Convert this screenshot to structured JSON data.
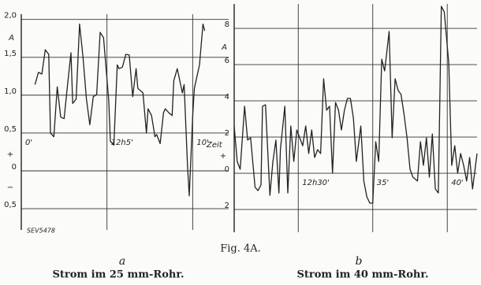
{
  "figure": {
    "caption": "Fig. 4A.",
    "source_mark": "SEV5478"
  },
  "chart_data": [
    {
      "type": "line",
      "panel_label": "a",
      "caption": "Strom im 25 mm-Rohr.",
      "ylabel": "A",
      "xlabel": "Zeit",
      "sign_labels": [
        "+",
        "−"
      ],
      "color": "#222222",
      "grid": true,
      "xlim": [
        0,
        12.1
      ],
      "xticks": [
        {
          "value": 0,
          "label": "0'"
        },
        {
          "value": 5,
          "label": "12h5'"
        },
        {
          "value": 10,
          "label": "10'"
        }
      ],
      "ylim": [
        -0.78,
        2.07
      ],
      "yticks": [
        {
          "value": 2,
          "label": "2,0"
        },
        {
          "value": 1.5,
          "label": "1,5"
        },
        {
          "value": 1,
          "label": "1,0"
        },
        {
          "value": 0.5,
          "label": "0,5"
        },
        0,
        {
          "value": -0.5,
          "label": "0,5"
        }
      ],
      "x": [
        0.8,
        1.0,
        1.2,
        1.4,
        1.6,
        1.7,
        1.9,
        2.1,
        2.3,
        2.5,
        2.7,
        2.9,
        3.0,
        3.2,
        3.4,
        3.6,
        3.8,
        4.0,
        4.2,
        4.4,
        4.6,
        4.8,
        5.1,
        5.2,
        5.4,
        5.6,
        5.7,
        5.9,
        6.1,
        6.3,
        6.5,
        6.7,
        6.8,
        7.1,
        7.3,
        7.4,
        7.6,
        7.8,
        7.9,
        8.1,
        8.3,
        8.4,
        8.6,
        8.8,
        8.9,
        9.1,
        9.4,
        9.5,
        9.7,
        9.8,
        10.0,
        10.1,
        10.4,
        10.6,
        10.7
      ],
      "values": [
        1.14,
        1.3,
        1.28,
        1.6,
        1.54,
        0.5,
        0.45,
        1.11,
        0.71,
        0.69,
        1.14,
        1.56,
        0.89,
        0.95,
        1.94,
        1.51,
        0.95,
        0.61,
        0.98,
        1.01,
        1.83,
        1.76,
        0.93,
        0.39,
        0.34,
        1.4,
        1.35,
        1.37,
        1.54,
        1.53,
        0.98,
        1.35,
        1.09,
        1.03,
        0.5,
        0.82,
        0.73,
        0.45,
        0.48,
        0.36,
        0.77,
        0.82,
        0.77,
        0.73,
        1.19,
        1.35,
        1.03,
        1.14,
        0.07,
        -0.33,
        0.73,
        1.09,
        1.4,
        1.94,
        1.85
      ]
    },
    {
      "type": "line",
      "panel_label": "b",
      "caption": "Strom im 40 mm-Rohr.",
      "ylabel": "A",
      "sign_labels": [
        "+"
      ],
      "color": "#222222",
      "grid": true,
      "xlim": [
        25.7,
        42.0
      ],
      "xticks": [
        {
          "value": 30,
          "label": "12h30'"
        },
        {
          "value": 35,
          "label": "35'"
        },
        {
          "value": 40,
          "label": "40'"
        }
      ],
      "ylim": [
        -3.26,
        9.35
      ],
      "yticks": [
        8,
        6,
        4,
        2,
        0,
        {
          "value": -2,
          "label": "2"
        }
      ],
      "x": [
        25.7,
        25.9,
        26.1,
        26.4,
        26.6,
        26.8,
        27.1,
        27.3,
        27.5,
        27.6,
        27.8,
        28.1,
        28.3,
        28.5,
        28.7,
        28.8,
        29.1,
        29.3,
        29.5,
        29.7,
        29.9,
        30.1,
        30.3,
        30.5,
        30.7,
        30.9,
        31.1,
        31.3,
        31.5,
        31.7,
        31.9,
        32.1,
        32.3,
        32.5,
        32.7,
        32.9,
        33.1,
        33.3,
        33.5,
        33.7,
        33.9,
        34.2,
        34.4,
        34.6,
        34.8,
        35.0,
        35.2,
        35.4,
        35.6,
        35.8,
        36.1,
        36.3,
        36.5,
        36.7,
        36.9,
        37.1,
        37.3,
        37.5,
        37.7,
        38.0,
        38.2,
        38.4,
        38.6,
        38.8,
        39.0,
        39.2,
        39.4,
        39.6,
        39.8,
        40.1,
        40.3,
        40.5,
        40.7,
        40.9,
        41.1,
        41.3,
        41.5,
        41.7,
        42.0
      ],
      "values": [
        2.61,
        0.65,
        0.22,
        3.7,
        1.83,
        1.96,
        -0.78,
        -0.96,
        -0.65,
        3.7,
        3.78,
        -1.22,
        0.65,
        1.83,
        -1.09,
        1.3,
        3.7,
        -1.09,
        2.61,
        0.65,
        2.39,
        1.96,
        1.52,
        2.61,
        1.09,
        2.39,
        0.87,
        1.3,
        1.09,
        5.22,
        3.48,
        3.7,
        0,
        3.91,
        3.48,
        2.39,
        3.48,
        4.13,
        4.13,
        3.04,
        0.65,
        2.61,
        -0.43,
        -1.3,
        -1.65,
        -1.65,
        1.74,
        0.65,
        6.3,
        5.65,
        7.83,
        1.96,
        5.22,
        4.57,
        4.35,
        3.26,
        1.96,
        0.22,
        -0.22,
        -0.43,
        1.74,
        0.43,
        1.96,
        -0.22,
        2.17,
        -0.87,
        -1.09,
        9.22,
        8.91,
        6.09,
        0.43,
        1.52,
        0,
        1.09,
        0.43,
        -0.43,
        0.87,
        -0.87,
        1.09
      ]
    }
  ]
}
